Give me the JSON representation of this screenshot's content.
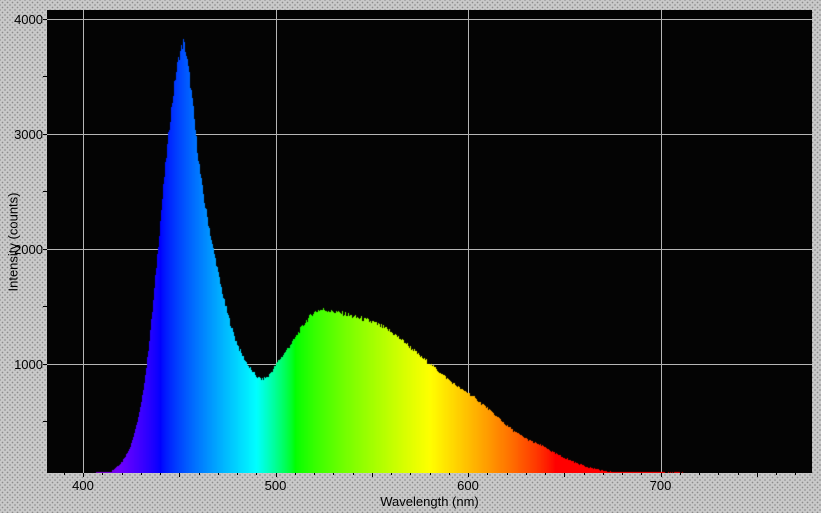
{
  "chart_data": {
    "type": "area",
    "title": "",
    "xlabel": "Wavelength (nm)",
    "ylabel": "Intensity (counts)",
    "xlim": [
      381.3,
      778.7
    ],
    "ylim": [
      0,
      4080
    ],
    "grid": true,
    "legend": "none",
    "xticks": [
      400,
      500,
      600,
      700
    ],
    "xtick_labels": [
      "400",
      "500",
      "600",
      "700"
    ],
    "x_minor_step": 10,
    "x_minor_range": [
      390,
      770
    ],
    "yticks": [
      1000,
      2000,
      3000,
      4000
    ],
    "ytick_labels": [
      "1000",
      "2000",
      "3000",
      "4000"
    ],
    "y_minor_step": 500,
    "colors": {
      "plot_background": "#040404",
      "grid": "#b6b6b6",
      "outer_background": "#c9c9c9",
      "dither_dot": "#8d8d8d",
      "text": "#000000",
      "fill": "spectral-rainbow"
    },
    "series": [
      {
        "name": "spectrum",
        "style": "filled-spectral",
        "points": [
          [
            381,
            0
          ],
          [
            400,
            3
          ],
          [
            404,
            8
          ],
          [
            408,
            18
          ],
          [
            412,
            40
          ],
          [
            416,
            80
          ],
          [
            420,
            145
          ],
          [
            424,
            260
          ],
          [
            427,
            420
          ],
          [
            430,
            640
          ],
          [
            433,
            1000
          ],
          [
            436,
            1480
          ],
          [
            439,
            2050
          ],
          [
            442,
            2620
          ],
          [
            445,
            3120
          ],
          [
            448,
            3520
          ],
          [
            450,
            3700
          ],
          [
            452,
            3800
          ],
          [
            453,
            3740
          ],
          [
            455,
            3520
          ],
          [
            457,
            3230
          ],
          [
            459,
            2900
          ],
          [
            461,
            2620
          ],
          [
            463,
            2400
          ],
          [
            465,
            2220
          ],
          [
            467,
            2030
          ],
          [
            469,
            1880
          ],
          [
            471,
            1710
          ],
          [
            473,
            1560
          ],
          [
            476,
            1370
          ],
          [
            479,
            1210
          ],
          [
            482,
            1090
          ],
          [
            485,
            1000
          ],
          [
            488,
            925
          ],
          [
            491,
            875
          ],
          [
            493,
            862
          ],
          [
            496,
            890
          ],
          [
            499,
            965
          ],
          [
            502,
            1040
          ],
          [
            505,
            1105
          ],
          [
            508,
            1175
          ],
          [
            511,
            1250
          ],
          [
            514,
            1330
          ],
          [
            517,
            1400
          ],
          [
            520,
            1448
          ],
          [
            523,
            1470
          ],
          [
            526,
            1465
          ],
          [
            529,
            1455
          ],
          [
            532,
            1445
          ],
          [
            536,
            1430
          ],
          [
            540,
            1410
          ],
          [
            544,
            1395
          ],
          [
            548,
            1375
          ],
          [
            552,
            1350
          ],
          [
            556,
            1315
          ],
          [
            560,
            1275
          ],
          [
            564,
            1225
          ],
          [
            568,
            1170
          ],
          [
            572,
            1110
          ],
          [
            576,
            1050
          ],
          [
            580,
            1000
          ],
          [
            584,
            945
          ],
          [
            588,
            885
          ],
          [
            592,
            830
          ],
          [
            596,
            780
          ],
          [
            600,
            745
          ],
          [
            604,
            690
          ],
          [
            608,
            640
          ],
          [
            612,
            580
          ],
          [
            616,
            520
          ],
          [
            620,
            460
          ],
          [
            624,
            410
          ],
          [
            628,
            365
          ],
          [
            632,
            330
          ],
          [
            636,
            300
          ],
          [
            640,
            270
          ],
          [
            644,
            230
          ],
          [
            648,
            195
          ],
          [
            652,
            165
          ],
          [
            656,
            135
          ],
          [
            660,
            112
          ],
          [
            664,
            92
          ],
          [
            668,
            76
          ],
          [
            672,
            62
          ],
          [
            676,
            52
          ],
          [
            680,
            43
          ],
          [
            684,
            36
          ],
          [
            688,
            30
          ],
          [
            692,
            26
          ],
          [
            696,
            22
          ],
          [
            700,
            19
          ],
          [
            704,
            15
          ],
          [
            708,
            12
          ],
          [
            712,
            9
          ],
          [
            716,
            7
          ],
          [
            720,
            5
          ],
          [
            726,
            4
          ],
          [
            732,
            3
          ],
          [
            740,
            2
          ],
          [
            750,
            1
          ],
          [
            762,
            1
          ],
          [
            779,
            0
          ]
        ]
      }
    ]
  }
}
